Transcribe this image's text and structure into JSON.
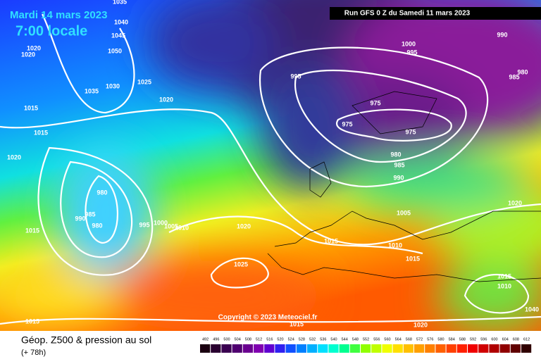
{
  "header": {
    "date": "Mardi 14 mars 2023",
    "time": "7:00 locale",
    "run": "Run GFS 0 Z du Samedi 11 mars 2023"
  },
  "copyright": "Copyright © 2023 Meteociel.fr",
  "footer": {
    "title": "Géop. Z500 & pression au sol",
    "lead": "(+ 78h)"
  },
  "isobar_labels": [
    "1035",
    "1040",
    "1045",
    "1020",
    "1020",
    "1050",
    "1025",
    "1030",
    "1035",
    "1020",
    "1015",
    "1015",
    "1020",
    "980",
    "985",
    "990",
    "980",
    "995",
    "1000",
    "1005",
    "1010",
    "1020",
    "1015",
    "1025",
    "1015",
    "1015",
    "1015",
    "1020",
    "995",
    "1000",
    "995",
    "990",
    "985",
    "980",
    "975",
    "975",
    "975",
    "980",
    "985",
    "990",
    "1005",
    "1010",
    "1015",
    "1020",
    "1015",
    "1010",
    "1040"
  ],
  "legend": {
    "scale": [
      "492",
      "496",
      "500",
      "504",
      "508",
      "512",
      "516",
      "520",
      "524",
      "528",
      "532",
      "536",
      "540",
      "544",
      "548",
      "552",
      "556",
      "560",
      "564",
      "568",
      "572",
      "576",
      "580",
      "584",
      "588",
      "592",
      "596",
      "600",
      "604",
      "608",
      "612"
    ]
  }
}
